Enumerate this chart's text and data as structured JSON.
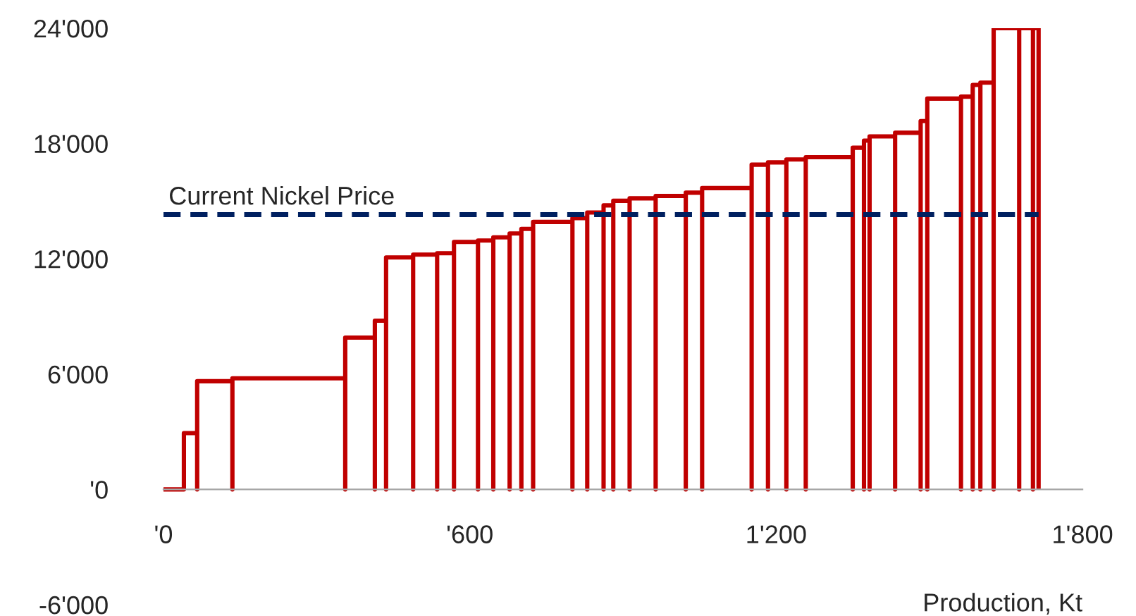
{
  "chart_data": {
    "type": "line",
    "xlabel": "Production, Kt",
    "xlim": [
      0,
      1800
    ],
    "xticks": [
      {
        "value": 0,
        "label": "'0"
      },
      {
        "value": 600,
        "label": "'600"
      },
      {
        "value": 1200,
        "label": "1'200"
      },
      {
        "value": 1800,
        "label": "1'800"
      }
    ],
    "ylim": [
      -6000,
      24000
    ],
    "yticks": [
      {
        "value": -6000,
        "label": "-6'000"
      },
      {
        "value": 0,
        "label": "'0"
      },
      {
        "value": 6000,
        "label": "6'000"
      },
      {
        "value": 12000,
        "label": "12'000"
      },
      {
        "value": 18000,
        "label": "18'000"
      },
      {
        "value": 24000,
        "label": "24'000"
      }
    ],
    "series": [
      {
        "color": "#c00000",
        "x": [
          0,
          40,
          40,
          66,
          66,
          66,
          135,
          135,
          135,
          356,
          356,
          356,
          414,
          414,
          414,
          436,
          436,
          436,
          489,
          489,
          489,
          536,
          536,
          536,
          569,
          569,
          569,
          616,
          616,
          616,
          646,
          646,
          646,
          678,
          678,
          678,
          701,
          701,
          701,
          724,
          724,
          724,
          801,
          801,
          801,
          830,
          830,
          830,
          862,
          862,
          862,
          881,
          881,
          881,
          913,
          913,
          913,
          964,
          964,
          964,
          1023,
          1023,
          1023,
          1055,
          1055,
          1055,
          1152,
          1152,
          1152,
          1184,
          1184,
          1184,
          1220,
          1220,
          1220,
          1258,
          1258,
          1258,
          1350,
          1350,
          1350,
          1372,
          1372,
          1372,
          1383,
          1383,
          1383,
          1433,
          1433,
          1433,
          1483,
          1483,
          1483,
          1496,
          1496,
          1496,
          1562,
          1562,
          1562,
          1585,
          1585,
          1585,
          1600,
          1600,
          1600,
          1626,
          1626,
          1626,
          1676,
          1676,
          1676,
          1703,
          1703,
          1703,
          1714,
          1714
        ],
        "values": [
          0,
          0,
          2930,
          2930,
          0,
          5630,
          5630,
          0,
          5780,
          5780,
          0,
          7900,
          7900,
          0,
          8780,
          8780,
          0,
          12070,
          12070,
          0,
          12220,
          12220,
          0,
          12290,
          12290,
          0,
          12880,
          12880,
          0,
          12950,
          12950,
          0,
          13120,
          13120,
          0,
          13320,
          13320,
          0,
          13560,
          13560,
          0,
          13920,
          13920,
          0,
          14120,
          14120,
          0,
          14410,
          14410,
          0,
          14780,
          14780,
          0,
          15020,
          15020,
          0,
          15150,
          15150,
          0,
          15270,
          15270,
          0,
          15440,
          15440,
          0,
          15680,
          15680,
          0,
          16900,
          16900,
          0,
          17020,
          17020,
          0,
          17170,
          17170,
          0,
          17290,
          17290,
          0,
          17780,
          17780,
          0,
          18150,
          18150,
          0,
          18370,
          18370,
          0,
          18560,
          18560,
          0,
          19170,
          19170,
          0,
          20340,
          20340,
          0,
          20440,
          20440,
          0,
          21050,
          21050,
          0,
          21170,
          21170,
          0,
          24000,
          24000,
          0,
          24000,
          24000,
          0,
          24000,
          24000,
          0
        ]
      }
    ],
    "ref_lines": [
      {
        "axis": "y",
        "value": 14300,
        "label": "Current Nickel Price",
        "color": "#002060",
        "line_style": "dashed"
      }
    ],
    "grid": false,
    "legend": false,
    "marker": "none",
    "line_style": "solid"
  }
}
